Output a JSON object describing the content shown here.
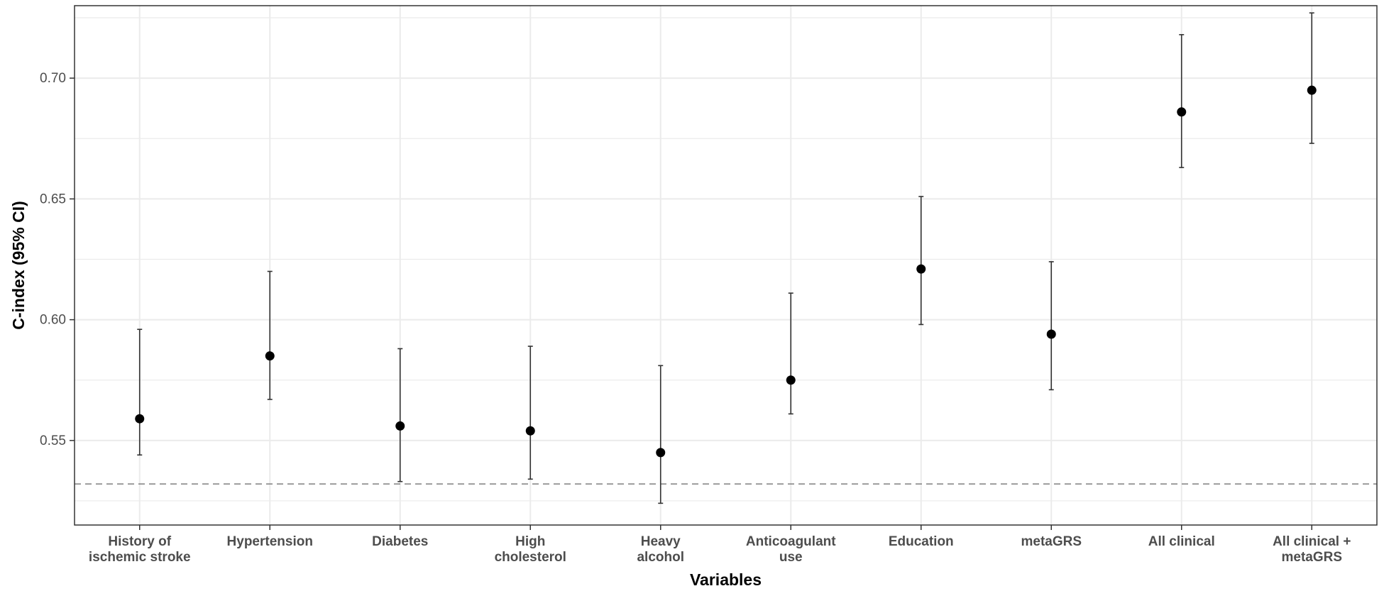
{
  "chart_data": {
    "type": "scatter",
    "subtype": "point-with-error-bars",
    "title": "",
    "xlabel": "Variables",
    "ylabel": "C-index (95% CI)",
    "ylim": [
      0.515,
      0.73
    ],
    "y_ticks": [
      0.55,
      0.6,
      0.65,
      0.7
    ],
    "y_tick_labels": [
      "0.55",
      "0.60",
      "0.65",
      "0.70"
    ],
    "categories": [
      [
        "History of",
        "ischemic stroke"
      ],
      [
        "Hypertension"
      ],
      [
        "Diabetes"
      ],
      [
        "High",
        "cholesterol"
      ],
      [
        "Heavy",
        "alcohol"
      ],
      [
        "Anticoagulant",
        "use"
      ],
      [
        "Education"
      ],
      [
        "metaGRS"
      ],
      [
        "All clinical"
      ],
      [
        "All clinical +",
        "metaGRS"
      ]
    ],
    "values": [
      0.559,
      0.585,
      0.556,
      0.554,
      0.545,
      0.575,
      0.621,
      0.594,
      0.686,
      0.695
    ],
    "ci_lower": [
      0.544,
      0.567,
      0.533,
      0.534,
      0.524,
      0.561,
      0.598,
      0.571,
      0.663,
      0.673
    ],
    "ci_upper": [
      0.596,
      0.62,
      0.588,
      0.589,
      0.581,
      0.611,
      0.651,
      0.624,
      0.718,
      0.727
    ],
    "reference_line": {
      "y": 0.532,
      "style": "dashed"
    },
    "grid": true,
    "legend": "none",
    "colors": {
      "points": "#000000",
      "errorbars": "#333333",
      "grid": "#ebebeb",
      "reference": "#7f7f7f",
      "panel_border": "#333333"
    }
  }
}
